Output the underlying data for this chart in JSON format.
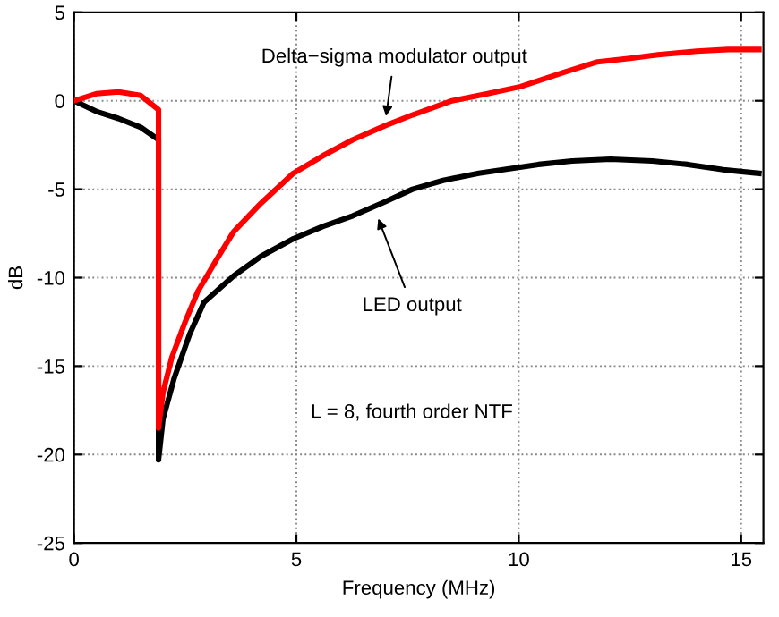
{
  "chart_data": {
    "type": "line",
    "xlabel": "Frequency (MHz)",
    "ylabel": "dB",
    "xlim": [
      0,
      15.5
    ],
    "ylim": [
      -25,
      5
    ],
    "xticks": [
      0,
      5,
      10,
      15
    ],
    "yticks": [
      -25,
      -20,
      -15,
      -10,
      -5,
      0,
      5
    ],
    "grid": true,
    "legend": false,
    "line_style": "solid",
    "marker": "none",
    "series": [
      {
        "color": "#ff0000",
        "x": [
          0,
          0.5,
          1,
          1.5,
          1.9,
          1.9,
          2.0,
          2.2,
          2.5,
          2.78,
          3.2,
          3.59,
          4.2,
          4.93,
          5.6,
          6.27,
          7.0,
          7.61,
          8.5,
          9.3,
          10.04,
          11.0,
          11.77,
          12.5,
          13.13,
          14.0,
          14.7,
          15.4
        ],
        "values": [
          0,
          0.4,
          0.5,
          0.3,
          -0.5,
          -18.5,
          -16.5,
          -14.5,
          -12.5,
          -10.8,
          -9.0,
          -7.4,
          -5.8,
          -4.1,
          -3.1,
          -2.2,
          -1.4,
          -0.8,
          0.0,
          0.4,
          0.8,
          1.6,
          2.2,
          2.4,
          2.6,
          2.8,
          2.9,
          2.9
        ]
      },
      {
        "color": "#000000",
        "x": [
          0,
          0.5,
          1,
          1.5,
          1.9,
          1.9,
          2.0,
          2.25,
          2.6,
          2.92,
          3.59,
          4.2,
          4.93,
          5.6,
          6.27,
          7.0,
          7.61,
          8.3,
          9.1,
          10.44,
          11.2,
          12.06,
          13.0,
          13.8,
          14.6,
          15.4
        ],
        "values": [
          0,
          -0.6,
          -1.0,
          -1.5,
          -2.2,
          -20.3,
          -18.0,
          -15.7,
          -13.2,
          -11.4,
          -9.9,
          -8.8,
          -7.8,
          -7.1,
          -6.5,
          -5.7,
          -5.0,
          -4.5,
          -4.1,
          -3.6,
          -3.4,
          -3.3,
          -3.4,
          -3.6,
          -3.9,
          -4.1
        ]
      }
    ],
    "annotations": [
      {
        "text": "Delta−sigma modulator output",
        "x": 7.0,
        "y": -1.15
      },
      {
        "text": "LED output",
        "x": 6.8,
        "y": -6.4
      },
      "L = 8, fourth order NTF"
    ]
  }
}
